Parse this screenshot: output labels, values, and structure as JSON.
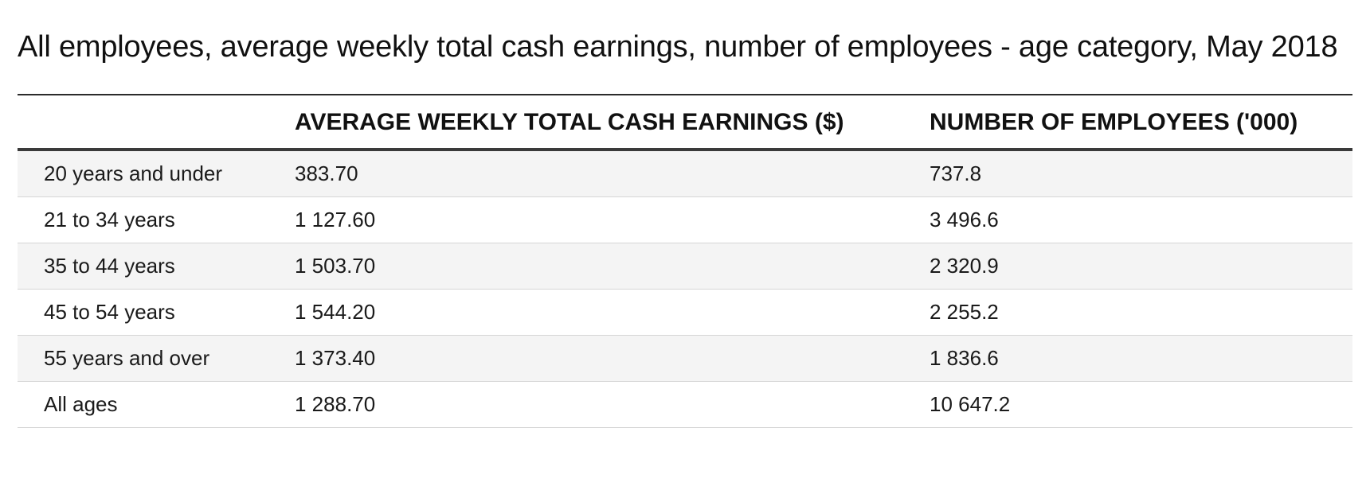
{
  "title": "All employees, average weekly total cash earnings, number of employees - age category, May 2018",
  "table": {
    "headers": [
      "",
      "AVERAGE WEEKLY TOTAL CASH EARNINGS ($)",
      "NUMBER OF EMPLOYEES ('000)"
    ],
    "rows": [
      {
        "label": "20 years and under",
        "earnings": "383.70",
        "employees": "737.8"
      },
      {
        "label": "21 to 34 years",
        "earnings": "1 127.60",
        "employees": "3 496.6"
      },
      {
        "label": "35 to 44 years",
        "earnings": "1 503.70",
        "employees": "2 320.9"
      },
      {
        "label": "45 to 54 years",
        "earnings": "1 544.20",
        "employees": "2 255.2"
      },
      {
        "label": "55 years and over",
        "earnings": "1 373.40",
        "employees": "1 836.6"
      },
      {
        "label": "All ages",
        "earnings": "1 288.70",
        "employees": "10 647.2"
      }
    ]
  }
}
